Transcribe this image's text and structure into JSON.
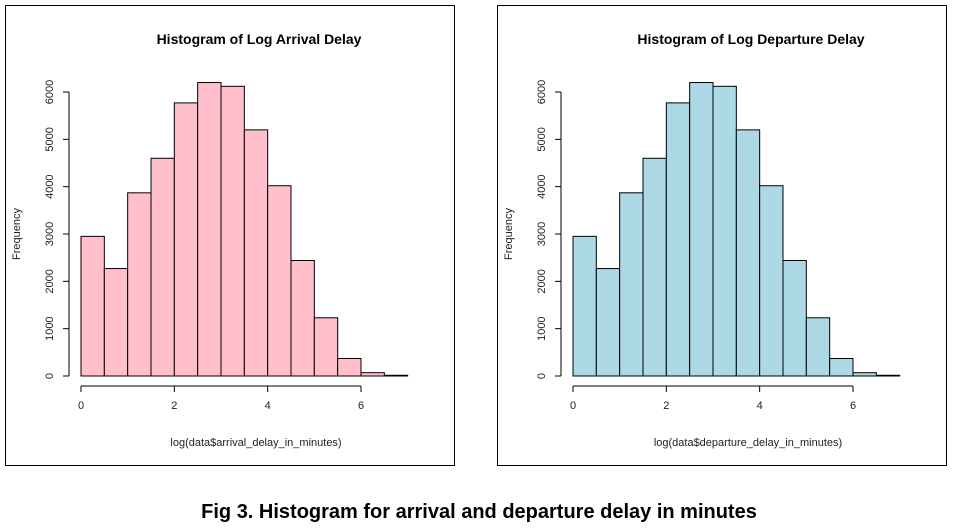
{
  "caption": "Fig 3. Histogram for arrival and departure delay in minutes",
  "chart_data": [
    {
      "type": "bar",
      "title": "Histogram of Log Arrival Delay",
      "xlabel": "log(data$arrival_delay_in_minutes)",
      "ylabel": "Frequency",
      "bar_color": "#ffc0cb",
      "bin_edges": [
        0,
        0.5,
        1,
        1.5,
        2,
        2.5,
        3,
        3.5,
        4,
        4.5,
        5,
        5.5,
        6,
        6.5,
        7
      ],
      "values": [
        2950,
        2270,
        3870,
        4600,
        5770,
        6200,
        6120,
        5200,
        4020,
        2440,
        1230,
        370,
        70,
        15
      ],
      "xlim": [
        0,
        7.5
      ],
      "ylim": [
        0,
        6000
      ],
      "x_ticks": [
        0,
        2,
        4,
        6
      ],
      "y_ticks": [
        0,
        1000,
        2000,
        3000,
        4000,
        5000,
        6000
      ],
      "grid": false
    },
    {
      "type": "bar",
      "title": "Histogram of Log Departure Delay",
      "xlabel": "log(data$departure_delay_in_minutes)",
      "ylabel": "Frequency",
      "bar_color": "#add8e6",
      "bin_edges": [
        0,
        0.5,
        1,
        1.5,
        2,
        2.5,
        3,
        3.5,
        4,
        4.5,
        5,
        5.5,
        6,
        6.5,
        7
      ],
      "values": [
        2950,
        2270,
        3870,
        4600,
        5770,
        6200,
        6120,
        5200,
        4020,
        2440,
        1230,
        370,
        70,
        15
      ],
      "xlim": [
        0,
        7.5
      ],
      "ylim": [
        0,
        6000
      ],
      "x_ticks": [
        0,
        2,
        4,
        6
      ],
      "y_ticks": [
        0,
        1000,
        2000,
        3000,
        4000,
        5000,
        6000
      ],
      "grid": false
    }
  ]
}
